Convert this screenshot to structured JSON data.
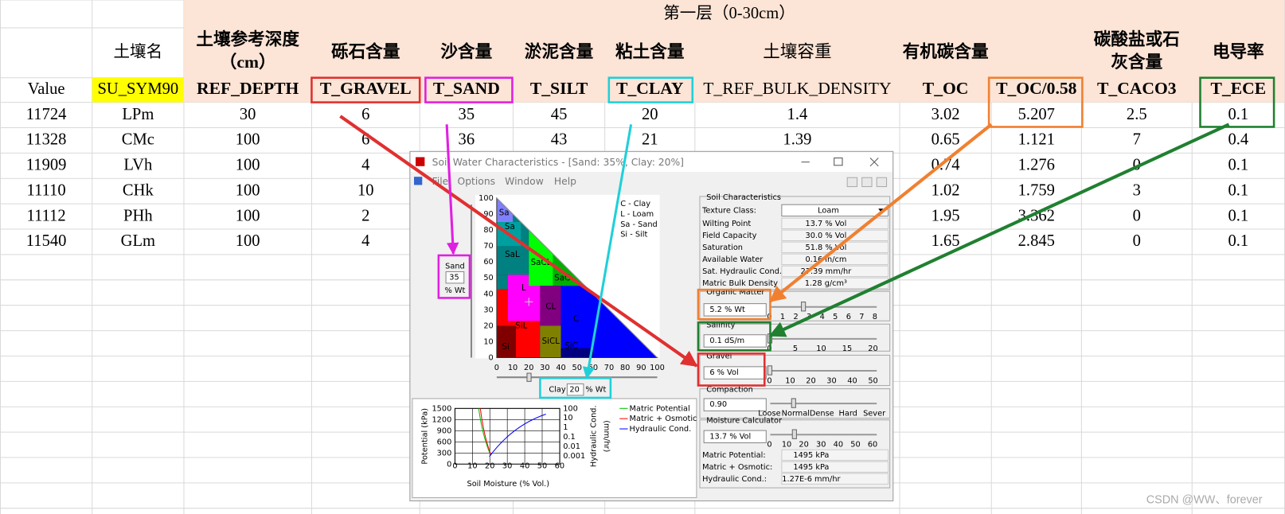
{
  "sheet": {
    "band_title": "第一层（0-30cm）",
    "names": [
      null,
      "土壤名",
      [
        "土壤参考深度",
        "（cm）"
      ],
      "砾石含量",
      "沙含量",
      "淤泥含量",
      "粘土含量",
      "土壤容重",
      "有机碳含量",
      null,
      [
        "碳酸盐或石",
        "灰含量"
      ],
      "电导率"
    ],
    "codes": [
      "Value",
      "SU_SYM90",
      "REF_DEPTH",
      "T_GRAVEL",
      "T_SAND",
      "T_SILT",
      "T_CLAY",
      "T_REF_BULK_DENSITY",
      "T_OC",
      "T_OC/0.58",
      "T_CACO3",
      "T_ECE"
    ],
    "rows": [
      [
        11724,
        "LPm",
        30,
        6,
        35,
        45,
        20,
        1.4,
        3.02,
        5.207,
        2.5,
        0.1
      ],
      [
        11328,
        "CMc",
        100,
        6,
        36,
        43,
        21,
        1.39,
        0.65,
        1.121,
        7,
        0.4
      ],
      [
        11909,
        "LVh",
        100,
        4,
        null,
        null,
        null,
        null,
        0.74,
        1.276,
        0,
        0.1
      ],
      [
        11110,
        "CHk",
        100,
        10,
        null,
        null,
        null,
        null,
        1.02,
        1.759,
        3,
        0.1
      ],
      [
        11112,
        "PHh",
        100,
        2,
        null,
        null,
        null,
        null,
        1.95,
        3.362,
        0,
        0.1
      ],
      [
        11540,
        "GLm",
        100,
        4,
        null,
        null,
        null,
        null,
        1.65,
        2.845,
        0,
        0.1
      ]
    ]
  },
  "window": {
    "title": "Soil Water Characteristics - [Sand: 35%, Clay: 20%]",
    "menu": [
      "File",
      "Options",
      "Window",
      "Help"
    ],
    "triangle": {
      "yticks": [
        100,
        90,
        80,
        70,
        60,
        50,
        40,
        30,
        20,
        10,
        0
      ],
      "xticks": [
        0,
        10,
        20,
        30,
        40,
        50,
        60,
        70,
        80,
        90,
        100
      ],
      "zones": [
        "Sa",
        "Sa",
        "SaL",
        "SaCL",
        "SaC",
        "L",
        "CL",
        "C",
        "SiL",
        "SiCL",
        "SiC",
        "Si"
      ],
      "legend": [
        "C - Clay",
        "L  - Loam",
        "Sa - Sand",
        "Si - Silt"
      ]
    },
    "sand": {
      "label": "Sand",
      "value": 35,
      "unit": "% Wt"
    },
    "clay": {
      "label": "Clay",
      "value": 20,
      "unit": "% Wt"
    },
    "moisture_chart": {
      "yticks": [
        1500,
        1200,
        900,
        600,
        300,
        0
      ],
      "xticks": [
        0,
        10,
        20,
        30,
        40,
        50,
        60
      ],
      "y2ticks": [
        100,
        10,
        1,
        0.1,
        0.01,
        0.001
      ],
      "ylabel": "Potential (kPa)",
      "xlabel": "Soil Moisture (% Vol.)",
      "y2label": [
        "Hydraulic Cond.",
        "(mm/hr)"
      ],
      "legend": [
        "Matric Potential",
        "Matric + Osmotic",
        "Hydraulic Cond."
      ]
    },
    "characteristics": {
      "title": "Soil Characteristics",
      "texture_label": "Texture Class:",
      "texture": "Loam",
      "rows": [
        [
          "Wilting Point",
          "13.7 % Vol"
        ],
        [
          "Field Capacity",
          "30.0 % Vol"
        ],
        [
          "Saturation",
          "51.8 % Vol"
        ],
        [
          "Available Water",
          "0.16 in/cm"
        ],
        [
          "Sat. Hydraulic Cond.",
          "27.39 mm/hr"
        ],
        [
          "Matric Bulk Density",
          "1.28 g/cm³"
        ]
      ]
    },
    "organic_matter": {
      "title": "Organic Matter",
      "value": "5.2 % Wt",
      "ticks": [
        0,
        1,
        2,
        3,
        4,
        5,
        6,
        7,
        8
      ]
    },
    "salinity": {
      "title": "Salinity",
      "value": "0.1 dS/m",
      "ticks": [
        0,
        5,
        10,
        15,
        20
      ]
    },
    "gravel": {
      "title": "Gravel",
      "value": "6 % Vol",
      "ticks": [
        0,
        10,
        20,
        30,
        40,
        50
      ]
    },
    "compaction": {
      "title": "Compaction",
      "value": "0.90",
      "ticks": [
        "Loose",
        "Normal",
        "Dense",
        "Hard",
        "Sever"
      ]
    },
    "moisture": {
      "title": "Moisture Calculator",
      "value": "13.7 % Vol",
      "ticks": [
        0,
        10,
        20,
        30,
        40,
        50,
        60
      ],
      "rows": [
        [
          "Matric Potential:",
          "1495 kPa"
        ],
        [
          "Matric + Osmotic:",
          "1495 kPa"
        ],
        [
          "Hydraulic Cond.:",
          "1.27E-6 mm/hr"
        ]
      ]
    }
  },
  "watermark": "CSDN @WW、forever"
}
